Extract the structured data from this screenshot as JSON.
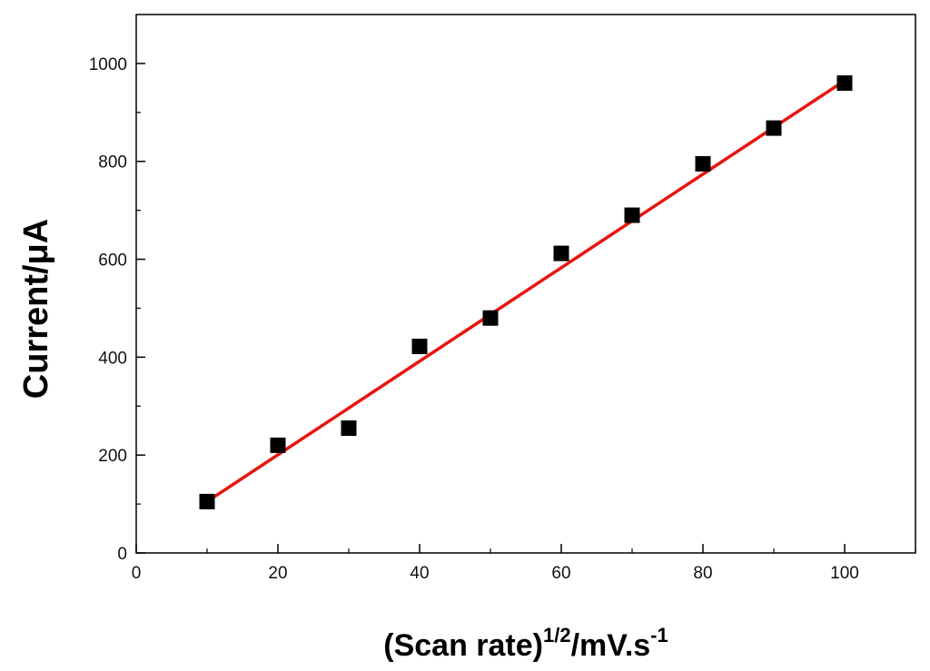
{
  "chart_data": {
    "type": "scatter",
    "title": "",
    "xlabel": "(Scan rate)",
    "xlabel_superscript": "1/2",
    "xlabel_unit": "/mV.s",
    "xlabel_unit_superscript": "-1",
    "ylabel": "Current/μA",
    "xlim": [
      0,
      110
    ],
    "ylim": [
      0,
      1100
    ],
    "xticks": [
      0,
      20,
      40,
      60,
      80,
      100
    ],
    "yticks": [
      0,
      200,
      400,
      600,
      800,
      1000
    ],
    "grid": false,
    "legend": "none",
    "series": [
      {
        "kind": "points",
        "marker": "square",
        "color": "#000000",
        "x": [
          10,
          20,
          30,
          40,
          50,
          60,
          70,
          80,
          90,
          100
        ],
        "y": [
          105,
          220,
          255,
          422,
          480,
          612,
          690,
          795,
          868,
          960
        ]
      },
      {
        "kind": "fit-line",
        "color": "#e8140f",
        "x": [
          10,
          100
        ],
        "y": [
          105,
          965
        ]
      }
    ]
  }
}
